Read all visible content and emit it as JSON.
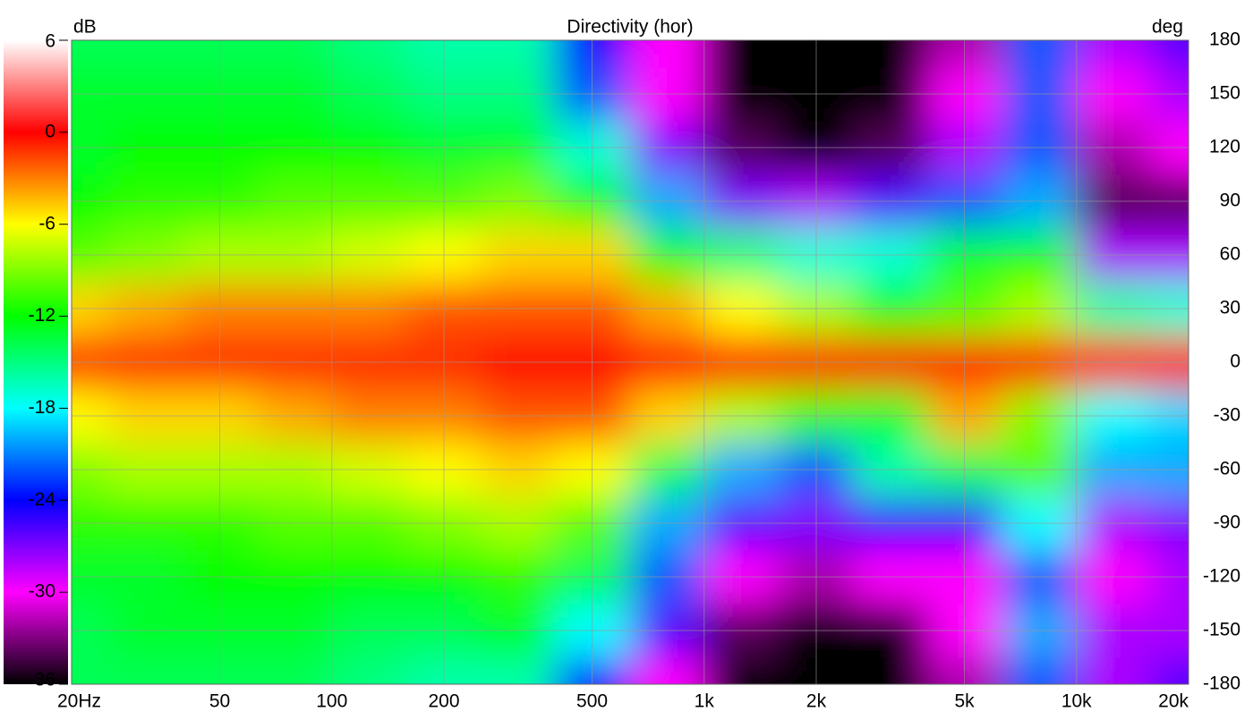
{
  "chart_data": {
    "type": "heatmap",
    "title": "Directivity (hor)",
    "colorbar_label": "dB",
    "y_label": "deg",
    "x": [
      20,
      31.5,
      50,
      80,
      125,
      200,
      315,
      500,
      800,
      1250,
      2000,
      3150,
      5000,
      8000,
      12500,
      20000
    ],
    "y": [
      -180,
      -150,
      -120,
      -90,
      -60,
      -30,
      0,
      30,
      60,
      90,
      120,
      150,
      180
    ],
    "values": [
      [
        -14,
        -14,
        -14,
        -14,
        -15,
        -16,
        -16,
        -24,
        -30,
        -36,
        -36,
        -36,
        -32,
        -22,
        -28,
        -26
      ],
      [
        -14,
        -13,
        -13,
        -13,
        -14,
        -14,
        -13,
        -18,
        -26,
        -34,
        -36,
        -36,
        -30,
        -20,
        -28,
        -28
      ],
      [
        -13,
        -13,
        -12,
        -12,
        -12,
        -12,
        -11,
        -14,
        -22,
        -30,
        -32,
        -30,
        -30,
        -22,
        -30,
        -28
      ],
      [
        -11,
        -11,
        -11,
        -10,
        -10,
        -9,
        -8,
        -10,
        -20,
        -26,
        -27,
        -25,
        -25,
        -18,
        -28,
        -27
      ],
      [
        -9,
        -8,
        -8,
        -8,
        -7,
        -6,
        -5,
        -6,
        -14,
        -20,
        -22,
        -16,
        -14,
        -10,
        -20,
        -20
      ],
      [
        -6,
        -5,
        -5,
        -4,
        -3,
        -3,
        -2,
        -2,
        -5,
        -8,
        -11,
        -13,
        -4,
        -9,
        -18,
        -19
      ],
      [
        -1,
        -1,
        -1,
        -1,
        -1,
        -1,
        0,
        0,
        0,
        0,
        0,
        0,
        0,
        0,
        0,
        0
      ],
      [
        -5,
        -4,
        -3,
        -3,
        -3,
        -2,
        -2,
        -2,
        -4,
        -6,
        -8,
        -12,
        -10,
        -8,
        -16,
        -17
      ],
      [
        -10,
        -9,
        -8,
        -8,
        -7,
        -6,
        -5,
        -5,
        -12,
        -15,
        -17,
        -17,
        -13,
        -12,
        -28,
        -28
      ],
      [
        -12,
        -11,
        -11,
        -10,
        -10,
        -10,
        -9,
        -12,
        -20,
        -27,
        -28,
        -26,
        -22,
        -20,
        -34,
        -34
      ],
      [
        -13,
        -12,
        -12,
        -12,
        -12,
        -13,
        -13,
        -17,
        -27,
        -34,
        -36,
        -34,
        -28,
        -22,
        -32,
        -30
      ],
      [
        -13,
        -13,
        -13,
        -13,
        -14,
        -15,
        -15,
        -22,
        -30,
        -36,
        -36,
        -36,
        -30,
        -22,
        -30,
        -28
      ],
      [
        -14,
        -14,
        -14,
        -14,
        -15,
        -16,
        -16,
        -24,
        -30,
        -36,
        -36,
        -36,
        -32,
        -22,
        -28,
        -26
      ]
    ],
    "xlim": [
      20,
      20000
    ],
    "log_x": true,
    "xticks": [
      {
        "value": 20,
        "label": "20Hz"
      },
      50,
      100,
      200,
      500,
      {
        "value": 1000,
        "label": "1k"
      },
      {
        "value": 2000,
        "label": "2k"
      },
      {
        "value": 5000,
        "label": "5k"
      },
      {
        "value": 10000,
        "label": "10k"
      },
      {
        "value": 20000,
        "label": "20k"
      }
    ],
    "ylim": [
      -180,
      180
    ],
    "yticks": [
      -180,
      -150,
      -120,
      -90,
      -60,
      -30,
      0,
      30,
      60,
      90,
      120,
      150,
      180
    ],
    "clim": [
      -36,
      6
    ],
    "cticks": [
      -36,
      -30,
      -24,
      -18,
      -12,
      -6,
      0,
      6
    ],
    "ccolors": [
      "#000000",
      "#ff00ff",
      "#0000ff",
      "#00ffff",
      "#00ff00",
      "#ffff00",
      "#ff0000",
      "#ffffff"
    ],
    "grid": true
  }
}
